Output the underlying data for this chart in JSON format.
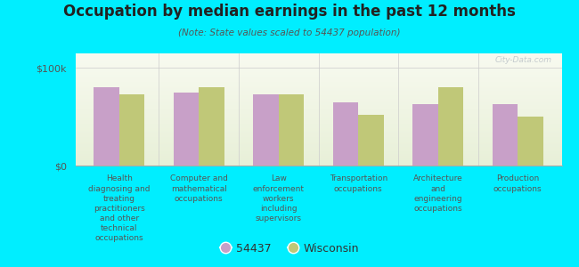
{
  "title": "Occupation by median earnings in the past 12 months",
  "subtitle": "(Note: State values scaled to 54437 population)",
  "background_color": "#00eeff",
  "categories": [
    "Health\ndiagnosing and\ntreating\npractitioners\nand other\ntechnical\noccupations",
    "Computer and\nmathematical\noccupations",
    "Law\nenforcement\nworkers\nincluding\nsupervisors",
    "Transportation\noccupations",
    "Architecture\nand\nengineering\noccupations",
    "Production\noccupations"
  ],
  "values_54437": [
    80000,
    75000,
    73000,
    65000,
    63000,
    63000
  ],
  "values_wisconsin": [
    73000,
    80000,
    73000,
    52000,
    80000,
    50000
  ],
  "color_54437": "#c8a0c8",
  "color_wisconsin": "#c0c878",
  "ylabel_top": "$100k",
  "ylabel_bottom": "$0",
  "legend_54437": "54437",
  "legend_wisconsin": "Wisconsin",
  "bar_width": 0.32,
  "ylim": [
    0,
    115000
  ],
  "watermark": "City-Data.com"
}
